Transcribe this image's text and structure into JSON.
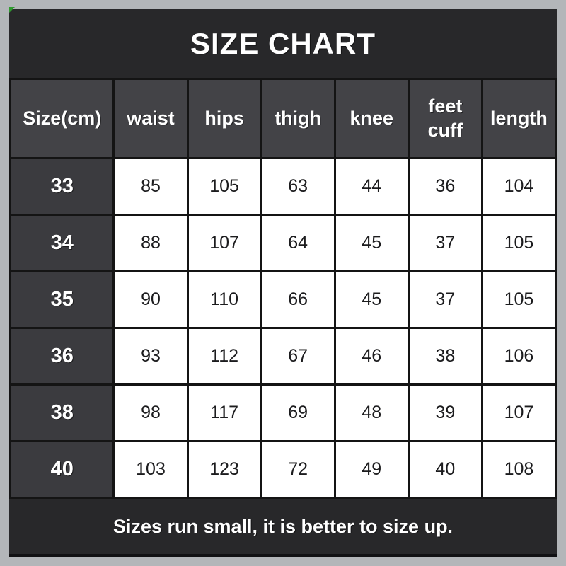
{
  "title": "SIZE CHART",
  "footer_note": "Sizes run small, it is better to size up.",
  "colors": {
    "border-gray": "#b3b6b9",
    "panel-bg": "#28282a",
    "header-cell-bg": "#434347",
    "size-cell-bg": "#3b3b3f",
    "data-cell-bg": "#ffffff",
    "grid-line": "#141414",
    "text-light": "#ffffff",
    "text-dark": "#1c1c1e",
    "artifact-green": "#2e9b2e"
  },
  "chart_data": {
    "type": "table",
    "title": "SIZE CHART",
    "columns": [
      "Size(cm)",
      "waist",
      "hips",
      "thigh",
      "knee",
      "feet cuff",
      "length"
    ],
    "rows": [
      [
        "33",
        85,
        105,
        63,
        44,
        36,
        104
      ],
      [
        "34",
        88,
        107,
        64,
        45,
        37,
        105
      ],
      [
        "35",
        90,
        110,
        66,
        45,
        37,
        105
      ],
      [
        "36",
        93,
        112,
        67,
        46,
        38,
        106
      ],
      [
        "38",
        98,
        117,
        69,
        48,
        39,
        107
      ],
      [
        "40",
        103,
        123,
        72,
        49,
        40,
        108
      ]
    ],
    "footnote": "Sizes run small, it is better to size up.",
    "layout_hints": {
      "header_row_dark": true,
      "first_column_dark": true,
      "grid_on": true
    }
  }
}
